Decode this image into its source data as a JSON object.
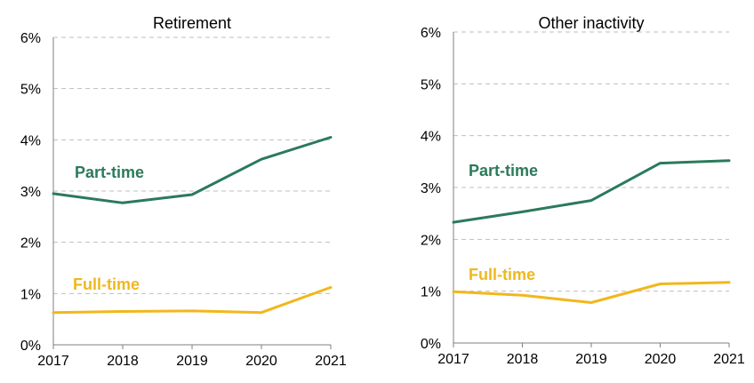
{
  "colors": {
    "part_time": "#2b7a5b",
    "full_time": "#f1b71c",
    "grid": "#bfbfbf",
    "axis": "#7f7f7f",
    "text": "#000000"
  },
  "chart_data": [
    {
      "type": "line",
      "title": "Retirement",
      "x": [
        "2017",
        "2018",
        "2019",
        "2020",
        "2021"
      ],
      "ylim": [
        0,
        6
      ],
      "y_ticks": [
        "0%",
        "1%",
        "2%",
        "3%",
        "4%",
        "5%",
        "6%"
      ],
      "grid": true,
      "series": [
        {
          "name": "Part-time",
          "color": "#2b7a5b",
          "values": [
            2.95,
            2.77,
            2.93,
            3.62,
            4.05
          ]
        },
        {
          "name": "Full-time",
          "color": "#f1b71c",
          "values": [
            0.63,
            0.65,
            0.66,
            0.63,
            1.12
          ]
        }
      ]
    },
    {
      "type": "line",
      "title": "Other inactivity",
      "x": [
        "2017",
        "2018",
        "2019",
        "2020",
        "2021"
      ],
      "ylim": [
        0,
        6
      ],
      "y_ticks": [
        "0%",
        "1%",
        "2%",
        "3%",
        "4%",
        "5%",
        "6%"
      ],
      "grid": true,
      "series": [
        {
          "name": "Part-time",
          "color": "#2b7a5b",
          "values": [
            2.33,
            2.53,
            2.75,
            3.47,
            3.52
          ]
        },
        {
          "name": "Full-time",
          "color": "#f1b71c",
          "values": [
            0.99,
            0.92,
            0.78,
            1.14,
            1.17
          ]
        }
      ]
    }
  ]
}
